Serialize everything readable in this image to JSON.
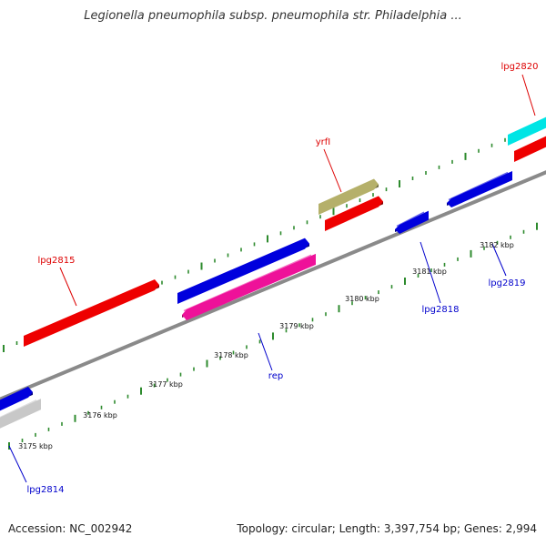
{
  "title": "Legionella pneumophila subsp. pneumophila str. Philadelphia ...",
  "footer": {
    "accession": "Accession: NC_002942",
    "summary": "Topology: circular; Length: 3,397,754 bp; Genes: 2,994"
  },
  "colors": {
    "backbone": "#8a8a8a",
    "tick": "#2e8b2e",
    "label_red": "#dd0000",
    "label_blue": "#0000cc"
  },
  "axis": {
    "tick_labels": [
      "3175 kbp",
      "3176 kbp",
      "3177 kbp",
      "3178 kbp",
      "3179 kbp",
      "3180 kbp",
      "3181 kbp",
      "3182 kbp"
    ]
  },
  "genes": [
    {
      "name": "",
      "strand": "forward",
      "color": "#0000dd"
    },
    {
      "name": "lpg2815",
      "strand": "forward",
      "color": "#ee0000"
    },
    {
      "name": "",
      "strand": "forward",
      "color": "#0000dd"
    },
    {
      "name": "yrfI",
      "strand": "forward",
      "color": "#b5b06a"
    },
    {
      "name": "",
      "strand": "forward",
      "color": "#ee0000"
    },
    {
      "name": "",
      "strand": "forward",
      "color": "#00e5e5"
    },
    {
      "name": "lpg2820",
      "strand": "forward",
      "color": "#ee0000"
    },
    {
      "name": "lpg2814",
      "strand": "reverse",
      "color": "#c8c8c8"
    },
    {
      "name": "rep",
      "strand": "reverse",
      "color": "#ee1199"
    },
    {
      "name": "lpg2818",
      "strand": "reverse",
      "color": "#0000dd"
    },
    {
      "name": "",
      "strand": "reverse",
      "color": "#0000dd"
    },
    {
      "name": "lpg2819",
      "strand": "reverse",
      "color": "#0000dd"
    }
  ]
}
